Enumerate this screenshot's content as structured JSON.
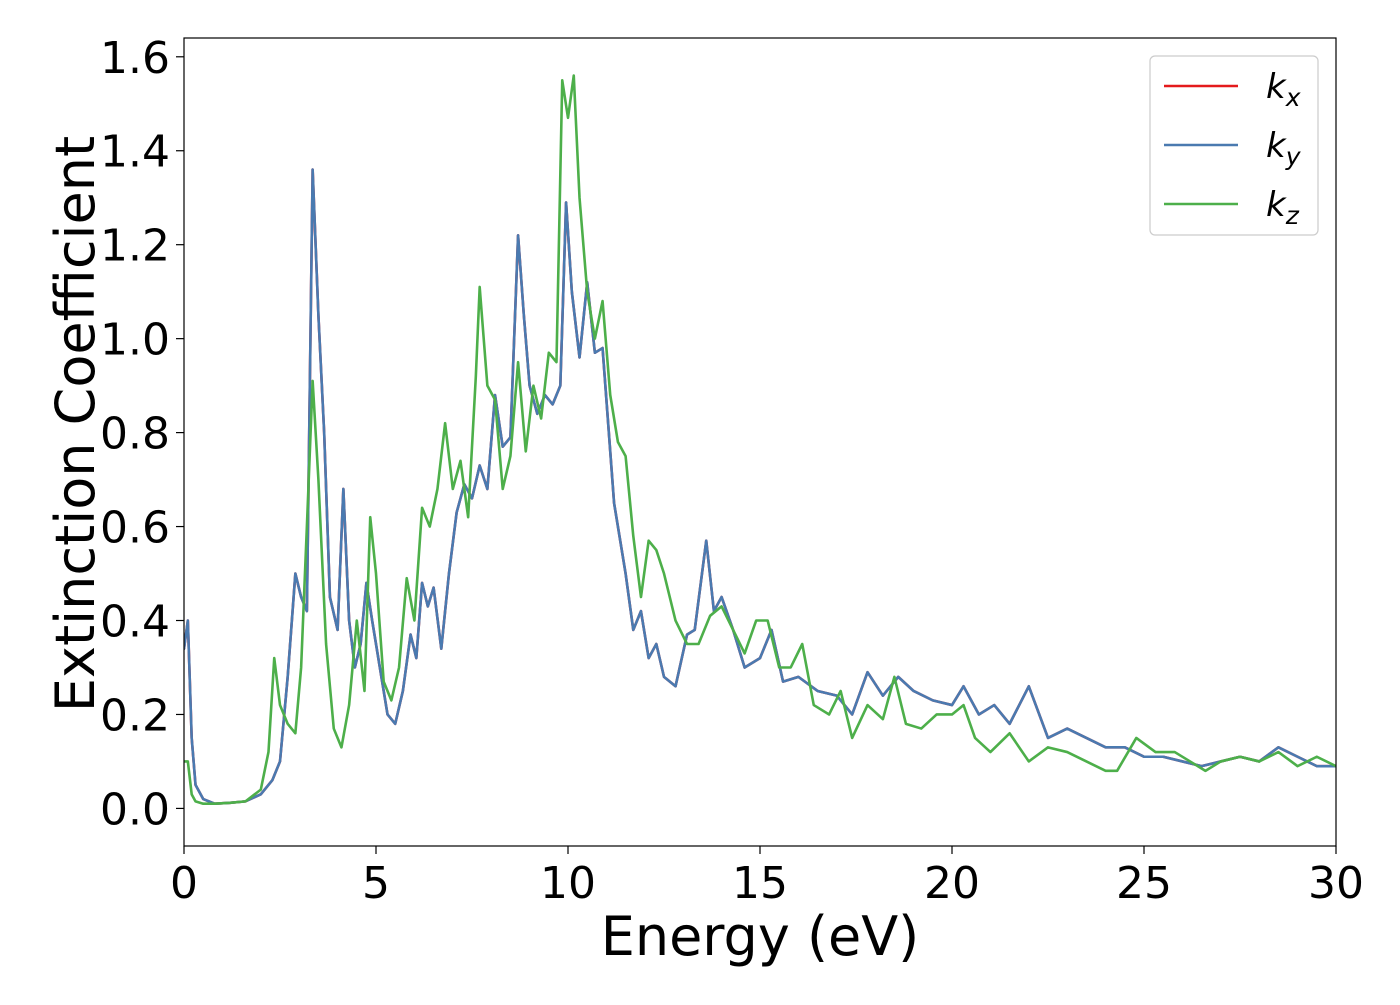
{
  "chart_data": {
    "type": "line",
    "title": "",
    "xlabel": "Energy (eV)",
    "ylabel": "Extinction Coefficient",
    "xlim": [
      0,
      30
    ],
    "ylim": [
      -0.08,
      1.64
    ],
    "xticks": [
      0,
      5,
      10,
      15,
      20,
      25,
      30
    ],
    "xtick_labels": [
      "0",
      "5",
      "10",
      "15",
      "20",
      "25",
      "30"
    ],
    "yticks": [
      0.0,
      0.2,
      0.4,
      0.6,
      0.8,
      1.0,
      1.2,
      1.4,
      1.6
    ],
    "ytick_labels": [
      "0.0",
      "0.2",
      "0.4",
      "0.6",
      "0.8",
      "1.0",
      "1.2",
      "1.4",
      "1.6"
    ],
    "grid": false,
    "legend_position": "top-right",
    "series": [
      {
        "name": "k_x",
        "label_base": "k",
        "label_sub": "x",
        "color": "#e41a1c",
        "x": [
          0,
          0.1,
          0.2,
          0.3,
          0.5,
          0.8,
          1.2,
          1.6,
          2.0,
          2.3,
          2.5,
          2.7,
          2.9,
          3.05,
          3.2,
          3.35,
          3.5,
          3.65,
          3.8,
          4.0,
          4.15,
          4.3,
          4.45,
          4.6,
          4.75,
          4.9,
          5.1,
          5.3,
          5.5,
          5.7,
          5.9,
          6.05,
          6.2,
          6.35,
          6.5,
          6.7,
          6.9,
          7.1,
          7.3,
          7.5,
          7.7,
          7.9,
          8.1,
          8.3,
          8.5,
          8.7,
          8.85,
          9.0,
          9.2,
          9.4,
          9.6,
          9.8,
          9.95,
          10.1,
          10.3,
          10.5,
          10.7,
          10.9,
          11.2,
          11.5,
          11.7,
          11.9,
          12.1,
          12.3,
          12.5,
          12.8,
          13.1,
          13.3,
          13.6,
          13.8,
          14.0,
          14.3,
          14.6,
          15.0,
          15.3,
          15.6,
          16.0,
          16.5,
          17.0,
          17.4,
          17.8,
          18.2,
          18.6,
          19.0,
          19.5,
          20.0,
          20.3,
          20.7,
          21.1,
          21.5,
          22.0,
          22.5,
          23.0,
          23.5,
          24.0,
          24.5,
          25.0,
          25.5,
          26.0,
          26.5,
          27.0,
          27.5,
          28.0,
          28.5,
          29.0,
          29.5,
          30.0
        ],
        "y": [
          0.34,
          0.4,
          0.15,
          0.05,
          0.02,
          0.01,
          0.012,
          0.015,
          0.03,
          0.06,
          0.1,
          0.28,
          0.5,
          0.45,
          0.42,
          1.36,
          1.05,
          0.8,
          0.45,
          0.38,
          0.68,
          0.4,
          0.3,
          0.35,
          0.48,
          0.4,
          0.3,
          0.2,
          0.18,
          0.25,
          0.37,
          0.32,
          0.48,
          0.43,
          0.47,
          0.34,
          0.5,
          0.63,
          0.69,
          0.66,
          0.73,
          0.68,
          0.88,
          0.77,
          0.79,
          1.22,
          1.05,
          0.9,
          0.84,
          0.88,
          0.86,
          0.9,
          1.29,
          1.1,
          0.96,
          1.12,
          0.97,
          0.98,
          0.65,
          0.5,
          0.38,
          0.42,
          0.32,
          0.35,
          0.28,
          0.26,
          0.37,
          0.38,
          0.57,
          0.42,
          0.45,
          0.38,
          0.3,
          0.32,
          0.38,
          0.27,
          0.28,
          0.25,
          0.24,
          0.2,
          0.29,
          0.24,
          0.28,
          0.25,
          0.23,
          0.22,
          0.26,
          0.2,
          0.22,
          0.18,
          0.26,
          0.15,
          0.17,
          0.15,
          0.13,
          0.13,
          0.11,
          0.11,
          0.1,
          0.09,
          0.1,
          0.11,
          0.1,
          0.13,
          0.11,
          0.09,
          0.09
        ]
      },
      {
        "name": "k_y",
        "label_base": "k",
        "label_sub": "y",
        "color": "#4a7ab0",
        "x": [
          0,
          0.1,
          0.2,
          0.3,
          0.5,
          0.8,
          1.2,
          1.6,
          2.0,
          2.3,
          2.5,
          2.7,
          2.9,
          3.05,
          3.2,
          3.35,
          3.5,
          3.65,
          3.8,
          4.0,
          4.15,
          4.3,
          4.45,
          4.6,
          4.75,
          4.9,
          5.1,
          5.3,
          5.5,
          5.7,
          5.9,
          6.05,
          6.2,
          6.35,
          6.5,
          6.7,
          6.9,
          7.1,
          7.3,
          7.5,
          7.7,
          7.9,
          8.1,
          8.3,
          8.5,
          8.7,
          8.85,
          9.0,
          9.2,
          9.4,
          9.6,
          9.8,
          9.95,
          10.1,
          10.3,
          10.5,
          10.7,
          10.9,
          11.2,
          11.5,
          11.7,
          11.9,
          12.1,
          12.3,
          12.5,
          12.8,
          13.1,
          13.3,
          13.6,
          13.8,
          14.0,
          14.3,
          14.6,
          15.0,
          15.3,
          15.6,
          16.0,
          16.5,
          17.0,
          17.4,
          17.8,
          18.2,
          18.6,
          19.0,
          19.5,
          20.0,
          20.3,
          20.7,
          21.1,
          21.5,
          22.0,
          22.5,
          23.0,
          23.5,
          24.0,
          24.5,
          25.0,
          25.5,
          26.0,
          26.5,
          27.0,
          27.5,
          28.0,
          28.5,
          29.0,
          29.5,
          30.0
        ],
        "y": [
          0.34,
          0.4,
          0.15,
          0.05,
          0.02,
          0.01,
          0.012,
          0.015,
          0.03,
          0.06,
          0.1,
          0.28,
          0.5,
          0.45,
          0.42,
          1.36,
          1.05,
          0.8,
          0.45,
          0.38,
          0.68,
          0.4,
          0.3,
          0.35,
          0.48,
          0.4,
          0.3,
          0.2,
          0.18,
          0.25,
          0.37,
          0.32,
          0.48,
          0.43,
          0.47,
          0.34,
          0.5,
          0.63,
          0.69,
          0.66,
          0.73,
          0.68,
          0.88,
          0.77,
          0.79,
          1.22,
          1.05,
          0.9,
          0.84,
          0.88,
          0.86,
          0.9,
          1.29,
          1.1,
          0.96,
          1.12,
          0.97,
          0.98,
          0.65,
          0.5,
          0.38,
          0.42,
          0.32,
          0.35,
          0.28,
          0.26,
          0.37,
          0.38,
          0.57,
          0.42,
          0.45,
          0.38,
          0.3,
          0.32,
          0.38,
          0.27,
          0.28,
          0.25,
          0.24,
          0.2,
          0.29,
          0.24,
          0.28,
          0.25,
          0.23,
          0.22,
          0.26,
          0.2,
          0.22,
          0.18,
          0.26,
          0.15,
          0.17,
          0.15,
          0.13,
          0.13,
          0.11,
          0.11,
          0.1,
          0.09,
          0.1,
          0.11,
          0.1,
          0.13,
          0.11,
          0.09,
          0.09
        ]
      },
      {
        "name": "k_z",
        "label_base": "k",
        "label_sub": "z",
        "color": "#4daf4a",
        "x": [
          0,
          0.1,
          0.2,
          0.3,
          0.5,
          0.8,
          1.2,
          1.6,
          2.0,
          2.2,
          2.35,
          2.5,
          2.7,
          2.9,
          3.05,
          3.2,
          3.35,
          3.5,
          3.7,
          3.9,
          4.1,
          4.3,
          4.5,
          4.7,
          4.85,
          5.0,
          5.2,
          5.4,
          5.6,
          5.8,
          6.0,
          6.2,
          6.4,
          6.6,
          6.8,
          7.0,
          7.2,
          7.4,
          7.6,
          7.7,
          7.9,
          8.1,
          8.3,
          8.5,
          8.7,
          8.9,
          9.1,
          9.3,
          9.5,
          9.7,
          9.85,
          10.0,
          10.15,
          10.3,
          10.5,
          10.7,
          10.9,
          11.1,
          11.3,
          11.5,
          11.7,
          11.9,
          12.1,
          12.3,
          12.5,
          12.8,
          13.1,
          13.4,
          13.7,
          14.0,
          14.3,
          14.6,
          14.9,
          15.2,
          15.5,
          15.8,
          16.1,
          16.4,
          16.8,
          17.1,
          17.4,
          17.8,
          18.2,
          18.5,
          18.8,
          19.2,
          19.6,
          20.0,
          20.3,
          20.6,
          21.0,
          21.5,
          22.0,
          22.5,
          23.0,
          23.5,
          24.0,
          24.3,
          24.8,
          25.3,
          25.8,
          26.2,
          26.6,
          27.0,
          27.5,
          28.0,
          28.5,
          29.0,
          29.5,
          30.0
        ],
        "y": [
          0.1,
          0.1,
          0.03,
          0.015,
          0.01,
          0.01,
          0.012,
          0.015,
          0.04,
          0.12,
          0.32,
          0.22,
          0.18,
          0.16,
          0.3,
          0.6,
          0.91,
          0.7,
          0.35,
          0.17,
          0.13,
          0.22,
          0.4,
          0.25,
          0.62,
          0.5,
          0.27,
          0.23,
          0.3,
          0.49,
          0.4,
          0.64,
          0.6,
          0.68,
          0.82,
          0.68,
          0.74,
          0.62,
          0.92,
          1.11,
          0.9,
          0.87,
          0.68,
          0.75,
          0.95,
          0.76,
          0.9,
          0.83,
          0.97,
          0.95,
          1.55,
          1.47,
          1.56,
          1.3,
          1.1,
          1.0,
          1.08,
          0.88,
          0.78,
          0.75,
          0.58,
          0.45,
          0.57,
          0.55,
          0.5,
          0.4,
          0.35,
          0.35,
          0.41,
          0.43,
          0.38,
          0.33,
          0.4,
          0.4,
          0.3,
          0.3,
          0.35,
          0.22,
          0.2,
          0.25,
          0.15,
          0.22,
          0.19,
          0.28,
          0.18,
          0.17,
          0.2,
          0.2,
          0.22,
          0.15,
          0.12,
          0.16,
          0.1,
          0.13,
          0.12,
          0.1,
          0.08,
          0.08,
          0.15,
          0.12,
          0.12,
          0.1,
          0.08,
          0.1,
          0.11,
          0.1,
          0.12,
          0.09,
          0.11,
          0.09
        ]
      }
    ]
  }
}
